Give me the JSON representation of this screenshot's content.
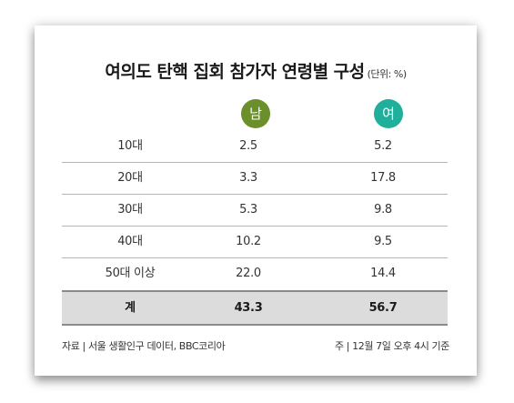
{
  "chart_data": {
    "type": "table",
    "title": "여의도 탄핵 집회 참가자 연령별 구성",
    "unit_note": "(단위: %)",
    "columns": [
      "남",
      "여"
    ],
    "rows": [
      {
        "label": "10대",
        "male": "2.5",
        "female": "5.2"
      },
      {
        "label": "20대",
        "male": "3.3",
        "female": "17.8"
      },
      {
        "label": "30대",
        "male": "5.3",
        "female": "9.8"
      },
      {
        "label": "40대",
        "male": "10.2",
        "female": "9.5"
      },
      {
        "label": "50대 이상",
        "male": "22.0",
        "female": "14.4"
      }
    ],
    "total": {
      "label": "계",
      "male": "43.3",
      "female": "56.7"
    },
    "source": "자료 | 서울 생활인구 데이터, BBC코리아",
    "note": "주 | 12월 7일 오후 4시 기준",
    "colors": {
      "male_badge": "#6b8f2a",
      "female_badge": "#1faf9a",
      "total_background": "#dcdcdc"
    }
  }
}
